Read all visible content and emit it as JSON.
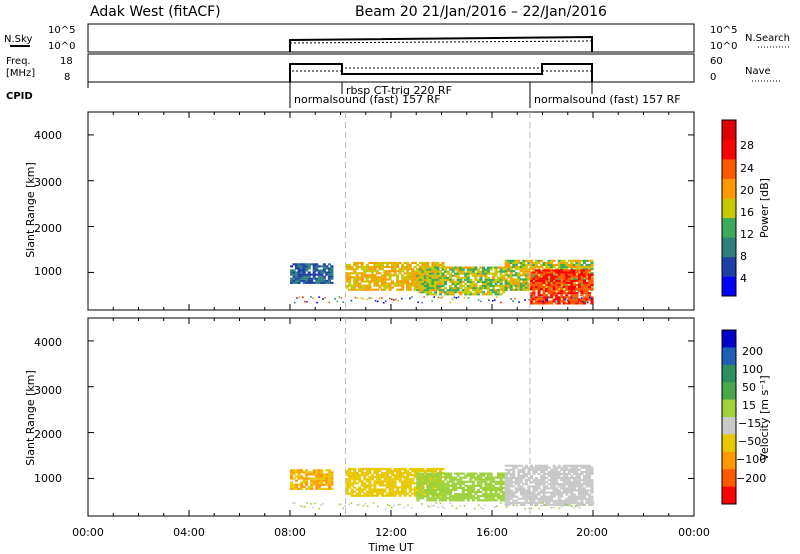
{
  "header": {
    "station": "Adak West (fitACF)",
    "beam_date": "Beam 20  21/Jan/2016 – 22/Jan/2016"
  },
  "top_panels": {
    "nsky_label": "N.Sky",
    "nsky_ticks": [
      "10^5",
      "10^0"
    ],
    "nsearch_ticks": [
      "10^5",
      "10^0"
    ],
    "nsearch_label": "N.Search",
    "freq_label_1": "Freq.",
    "freq_label_2": "[MHz]",
    "freq_ticks": [
      "18",
      "8"
    ],
    "nave_ticks": [
      "60",
      "0"
    ],
    "nave_label": "Nave",
    "cpid_label": "CPID",
    "cpid_programs": [
      "normalsound (fast) 157 RF",
      "rbsp CT-trig 220 RF",
      "normalsound (fast) 157 RF"
    ]
  },
  "panels": {
    "power": {
      "ylabel": "Slant Range [km]",
      "yticks": [
        "4000",
        "3000",
        "2000",
        "1000"
      ],
      "colorbar_label": "Power [dB]",
      "colorbar_ticks": [
        "28",
        "24",
        "20",
        "16",
        "12",
        "8",
        "4"
      ],
      "colors": [
        "#0000ff",
        "#1f3fa8",
        "#2e7f7f",
        "#3caa5a",
        "#c8c800",
        "#ff9900",
        "#ff5a00",
        "#ff0000",
        "#e00000"
      ]
    },
    "velocity": {
      "ylabel": "Slant Range [km]",
      "yticks": [
        "4000",
        "3000",
        "2000",
        "1000"
      ],
      "colorbar_label": "Velocity [m s⁻¹]",
      "colorbar_ticks": [
        "200",
        "100",
        "50",
        "15",
        "−15",
        "−50",
        "−100",
        "−200"
      ],
      "colors": [
        "#0000cc",
        "#1f5fb8",
        "#2e8f5a",
        "#4aa84a",
        "#9cd23c",
        "#c8c8c8",
        "#e8c800",
        "#ff9900",
        "#ff5a00",
        "#ff0000"
      ]
    }
  },
  "x_axis": {
    "ticks": [
      "00:00",
      "04:00",
      "08:00",
      "12:00",
      "16:00",
      "20:00",
      "00:00"
    ],
    "label": "Time UT"
  },
  "chart_data": [
    {
      "type": "heatmap",
      "title": "Power",
      "xlabel": "Time UT",
      "ylabel": "Slant Range [km]",
      "ylim": [
        180,
        4500
      ],
      "xlim_hours": [
        0,
        24
      ],
      "colorbar": "Power [dB]",
      "clim": [
        0,
        30
      ],
      "blobs": [
        {
          "t0": 8.0,
          "t1": 9.6,
          "r0": 750,
          "r1": 1200,
          "value": 8
        },
        {
          "t0": 10.2,
          "t1": 14.0,
          "r0": 600,
          "r1": 1200,
          "value": 20
        },
        {
          "t0": 13.0,
          "t1": 16.5,
          "r0": 500,
          "r1": 1100,
          "value": 17
        },
        {
          "t0": 16.5,
          "t1": 20.0,
          "r0": 600,
          "r1": 1250,
          "value": 18
        },
        {
          "t0": 17.5,
          "t1": 20.0,
          "r0": 300,
          "r1": 1050,
          "value": 28
        }
      ],
      "segments": [
        {
          "t0": 8.0,
          "t1": 10.2
        },
        {
          "t0": 10.2,
          "t1": 17.5
        },
        {
          "t0": 17.5,
          "t1": 20.0
        }
      ]
    },
    {
      "type": "heatmap",
      "title": "Velocity",
      "xlabel": "Time UT",
      "ylabel": "Slant Range [km]",
      "ylim": [
        180,
        4500
      ],
      "xlim_hours": [
        0,
        24
      ],
      "colorbar": "Velocity [m s⁻¹]",
      "clim": [
        -200,
        200
      ],
      "blobs": [
        {
          "t0": 8.0,
          "t1": 9.6,
          "r0": 750,
          "r1": 1200,
          "value": -50
        },
        {
          "t0": 10.2,
          "t1": 14.0,
          "r0": 600,
          "r1": 1200,
          "value": -40
        },
        {
          "t0": 13.0,
          "t1": 16.5,
          "r0": 500,
          "r1": 1100,
          "value": 30
        },
        {
          "t0": 16.5,
          "t1": 20.0,
          "r0": 400,
          "r1": 1300,
          "value": 0
        }
      ]
    }
  ]
}
